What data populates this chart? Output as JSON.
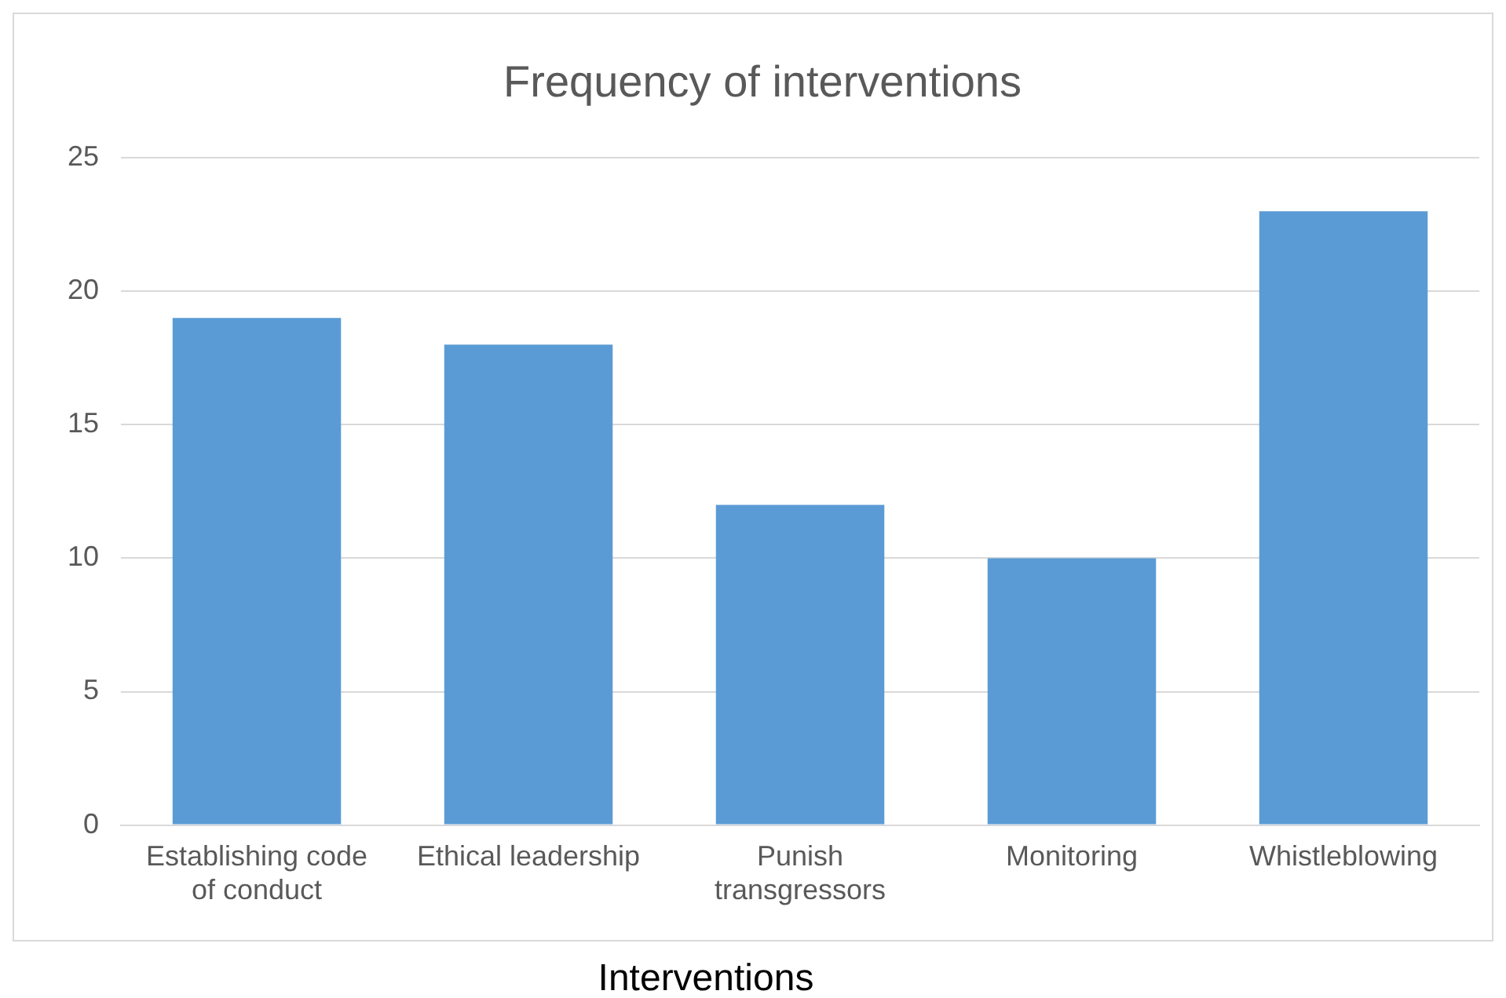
{
  "chart_data": {
    "type": "bar",
    "title": "Frequency of interventions",
    "xlabel": "Interventions",
    "categories": [
      "Establishing code of conduct",
      "Ethical leadership",
      "Punish transgressors",
      "Monitoring",
      "Whistleblowing"
    ],
    "values": [
      19,
      18,
      12,
      10,
      23
    ],
    "color": "#5b9bd5",
    "ylim": [
      0,
      25
    ],
    "yticks": [
      0,
      5,
      10,
      15,
      20,
      25
    ],
    "grid": "y",
    "legend": false
  }
}
